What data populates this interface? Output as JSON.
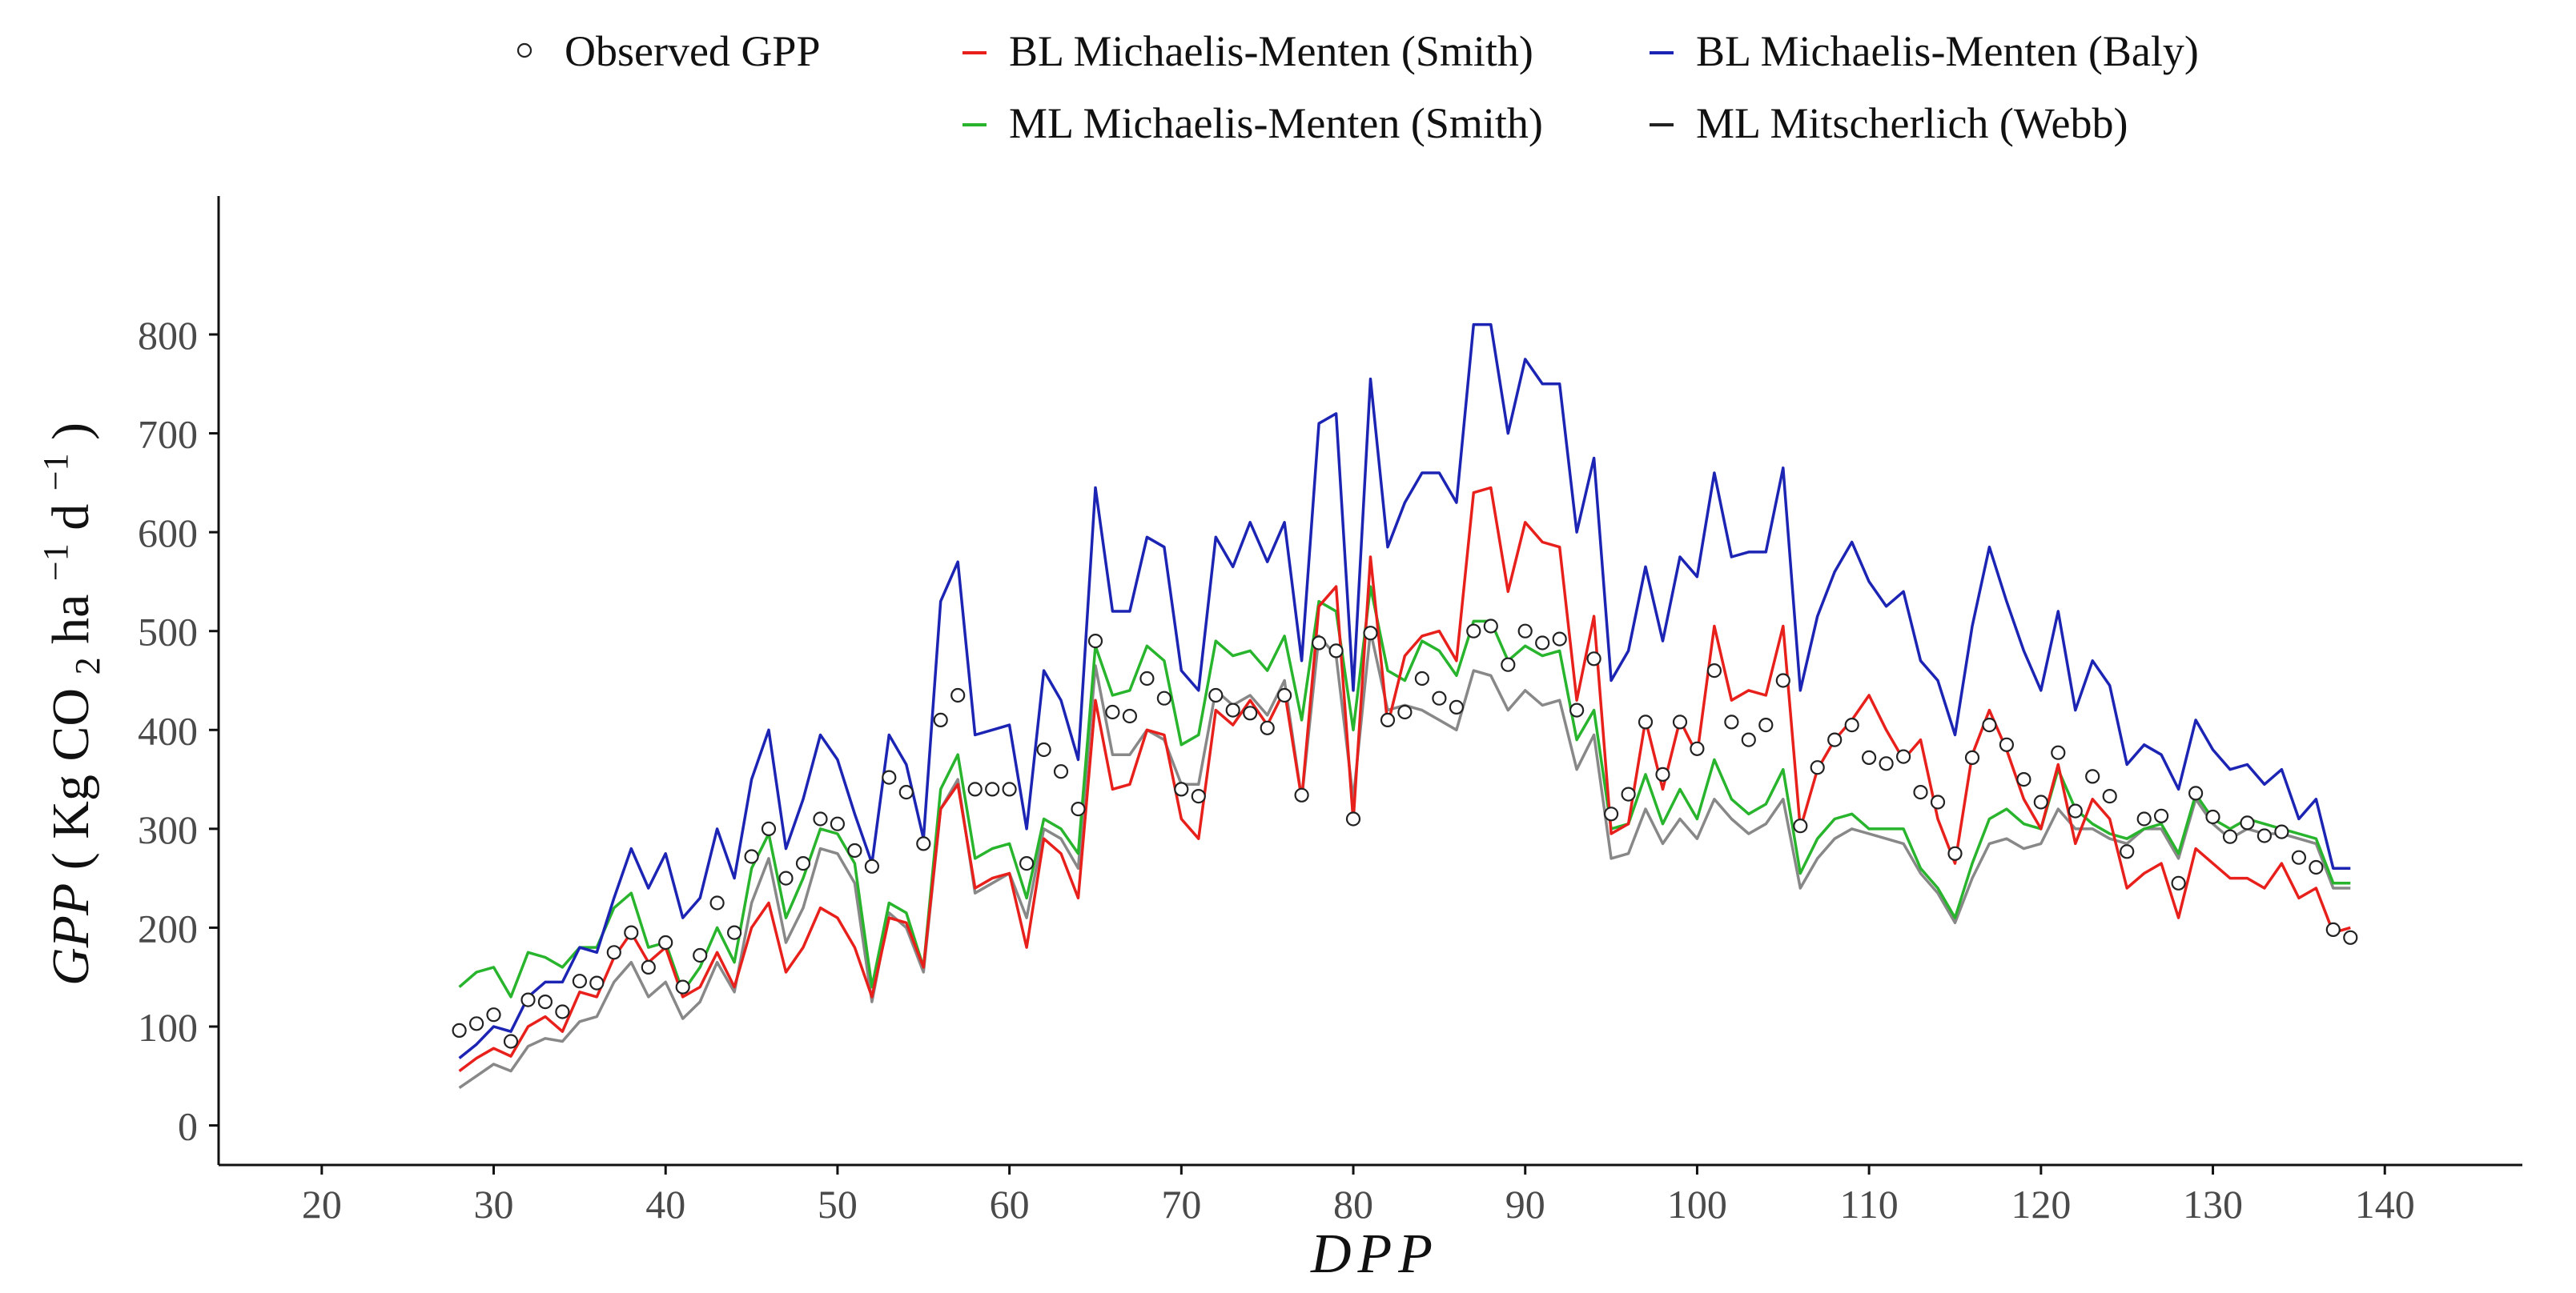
{
  "chart_data": {
    "type": "line",
    "xlabel": "DPP",
    "ylabel": {
      "main": "GPP",
      "open": "( Kg CO",
      "sub_co2": "2",
      "mid": " ha",
      "sup_ha": "−1",
      "d": " d",
      "sup_d": "−1",
      "close": " )"
    },
    "xlim": [
      14,
      148
    ],
    "ylim": [
      -40,
      940
    ],
    "x_ticks": [
      20,
      30,
      40,
      50,
      60,
      70,
      80,
      90,
      100,
      110,
      120,
      130,
      140
    ],
    "y_ticks": [
      0,
      100,
      200,
      300,
      400,
      500,
      600,
      700,
      800
    ],
    "x": [
      28,
      29,
      30,
      31,
      32,
      33,
      34,
      35,
      36,
      37,
      38,
      39,
      40,
      41,
      42,
      43,
      44,
      45,
      46,
      47,
      48,
      49,
      50,
      51,
      52,
      53,
      54,
      55,
      56,
      57,
      58,
      59,
      60,
      61,
      62,
      63,
      64,
      65,
      66,
      67,
      68,
      69,
      70,
      71,
      72,
      73,
      74,
      75,
      76,
      77,
      78,
      79,
      80,
      81,
      82,
      83,
      84,
      85,
      86,
      87,
      88,
      89,
      90,
      91,
      92,
      93,
      94,
      95,
      96,
      97,
      98,
      99,
      100,
      101,
      102,
      103,
      104,
      105,
      106,
      107,
      108,
      109,
      110,
      111,
      112,
      113,
      114,
      115,
      116,
      117,
      118,
      119,
      120,
      121,
      122,
      123,
      124,
      125,
      126,
      127,
      128,
      129,
      130,
      131,
      132,
      133,
      134,
      135,
      136,
      137,
      138
    ],
    "observed": {
      "name": "Observed GPP",
      "values": [
        96,
        103,
        112,
        85,
        127,
        125,
        115,
        146,
        144,
        175,
        195,
        160,
        185,
        140,
        172,
        225,
        195,
        272,
        300,
        250,
        265,
        310,
        305,
        278,
        262,
        352,
        337,
        285,
        410,
        435,
        340,
        340,
        340,
        265,
        380,
        358,
        320,
        490,
        418,
        414,
        452,
        432,
        340,
        333,
        435,
        420,
        417,
        402,
        435,
        334,
        488,
        480,
        310,
        498,
        410,
        418,
        452,
        432,
        423,
        500,
        505,
        466,
        500,
        488,
        492,
        420,
        472,
        315,
        335,
        408,
        355,
        408,
        381,
        460,
        408,
        390,
        405,
        450,
        303,
        362,
        390,
        405,
        372,
        366,
        373,
        337,
        327,
        275,
        372,
        405,
        385,
        350,
        327,
        377,
        318,
        353,
        333,
        277,
        310,
        313,
        245,
        336,
        312,
        292,
        306,
        293,
        297,
        271,
        261,
        198,
        190
      ]
    },
    "series": [
      {
        "name": "BL Michaelis-Menten (Smith)",
        "color": "#e8201c",
        "values": [
          55,
          68,
          78,
          70,
          100,
          110,
          95,
          135,
          130,
          170,
          195,
          165,
          180,
          130,
          140,
          175,
          140,
          200,
          225,
          155,
          180,
          220,
          210,
          180,
          130,
          210,
          205,
          160,
          320,
          345,
          240,
          250,
          255,
          180,
          290,
          275,
          230,
          430,
          340,
          345,
          400,
          395,
          310,
          290,
          420,
          405,
          430,
          405,
          440,
          330,
          525,
          545,
          308,
          575,
          405,
          475,
          495,
          500,
          470,
          640,
          645,
          540,
          610,
          590,
          585,
          430,
          515,
          295,
          305,
          410,
          340,
          410,
          375,
          505,
          430,
          440,
          435,
          505,
          300,
          360,
          390,
          410,
          435,
          400,
          370,
          390,
          310,
          265,
          375,
          420,
          380,
          330,
          300,
          365,
          285,
          330,
          310,
          240,
          255,
          265,
          210,
          280,
          265,
          250,
          250,
          240,
          265,
          230,
          240,
          195,
          200
        ]
      },
      {
        "name": "BL Michaelis-Menten (Baly)",
        "color": "#1c24b4",
        "values": [
          68,
          82,
          100,
          95,
          130,
          145,
          145,
          180,
          175,
          230,
          280,
          240,
          275,
          210,
          230,
          300,
          250,
          350,
          400,
          280,
          330,
          395,
          370,
          315,
          265,
          395,
          365,
          290,
          530,
          570,
          395,
          400,
          405,
          300,
          460,
          430,
          370,
          645,
          520,
          520,
          595,
          585,
          460,
          440,
          595,
          565,
          610,
          570,
          610,
          470,
          710,
          720,
          440,
          755,
          585,
          630,
          660,
          660,
          630,
          810,
          810,
          700,
          775,
          750,
          750,
          600,
          675,
          450,
          480,
          565,
          490,
          575,
          555,
          660,
          575,
          580,
          580,
          665,
          440,
          515,
          560,
          590,
          550,
          525,
          540,
          470,
          450,
          395,
          505,
          585,
          530,
          480,
          440,
          520,
          420,
          470,
          445,
          365,
          385,
          375,
          340,
          410,
          380,
          360,
          365,
          345,
          360,
          310,
          330,
          260,
          260
        ]
      },
      {
        "name": "ML Michaelis-Menten (Smith)",
        "color": "#28b42c",
        "values": [
          140,
          155,
          160,
          130,
          175,
          170,
          160,
          180,
          180,
          220,
          235,
          180,
          185,
          135,
          160,
          200,
          165,
          260,
          295,
          210,
          250,
          300,
          295,
          265,
          140,
          225,
          215,
          160,
          340,
          375,
          270,
          280,
          285,
          230,
          310,
          300,
          275,
          485,
          435,
          440,
          485,
          470,
          385,
          395,
          490,
          475,
          480,
          460,
          495,
          410,
          530,
          520,
          400,
          545,
          460,
          450,
          490,
          480,
          455,
          510,
          510,
          470,
          485,
          475,
          480,
          390,
          420,
          300,
          305,
          355,
          305,
          340,
          310,
          370,
          330,
          315,
          325,
          360,
          255,
          290,
          310,
          315,
          300,
          300,
          300,
          260,
          240,
          210,
          265,
          310,
          320,
          305,
          300,
          360,
          320,
          305,
          295,
          290,
          300,
          305,
          275,
          335,
          310,
          300,
          310,
          305,
          300,
          295,
          290,
          245,
          245
        ]
      },
      {
        "name": "ML Mitscherlich (Webb)",
        "color": "#888888",
        "values": [
          38,
          50,
          62,
          55,
          80,
          88,
          85,
          105,
          110,
          145,
          165,
          130,
          145,
          108,
          125,
          165,
          135,
          225,
          270,
          185,
          220,
          280,
          275,
          245,
          125,
          215,
          200,
          155,
          320,
          350,
          235,
          245,
          255,
          210,
          300,
          290,
          260,
          465,
          375,
          375,
          400,
          390,
          345,
          345,
          440,
          425,
          435,
          415,
          450,
          330,
          495,
          475,
          330,
          500,
          420,
          425,
          420,
          410,
          400,
          460,
          455,
          420,
          440,
          425,
          430,
          360,
          395,
          270,
          275,
          320,
          285,
          310,
          290,
          330,
          310,
          295,
          305,
          330,
          240,
          270,
          290,
          300,
          295,
          290,
          285,
          255,
          235,
          205,
          250,
          285,
          290,
          280,
          285,
          320,
          300,
          300,
          290,
          285,
          300,
          300,
          270,
          330,
          305,
          290,
          300,
          295,
          295,
          290,
          285,
          240,
          240
        ]
      }
    ],
    "legend": {
      "position": "top",
      "observed_label": "Observed GPP",
      "items": [
        "BL Michaelis-Menten (Smith)",
        "BL Michaelis-Menten (Baly)",
        "ML Michaelis-Menten (Smith)",
        "ML Mitscherlich (Webb)"
      ]
    }
  }
}
